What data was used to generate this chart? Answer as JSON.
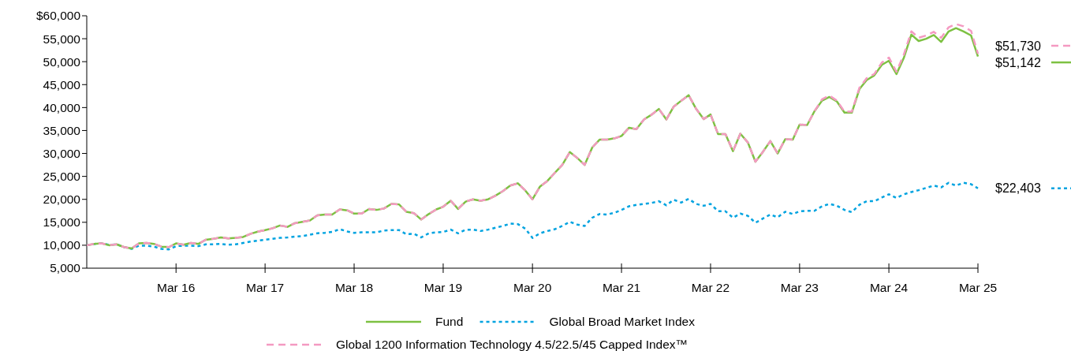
{
  "chart_data": {
    "type": "line",
    "x": [
      "2015-03",
      "2015-04",
      "2015-05",
      "2015-06",
      "2015-07",
      "2015-08",
      "2015-09",
      "2015-10",
      "2015-11",
      "2015-12",
      "2016-01",
      "2016-02",
      "2016-03",
      "2016-04",
      "2016-05",
      "2016-06",
      "2016-07",
      "2016-08",
      "2016-09",
      "2016-10",
      "2016-11",
      "2016-12",
      "2017-01",
      "2017-02",
      "2017-03",
      "2017-04",
      "2017-05",
      "2017-06",
      "2017-07",
      "2017-08",
      "2017-09",
      "2017-10",
      "2017-11",
      "2017-12",
      "2018-01",
      "2018-02",
      "2018-03",
      "2018-04",
      "2018-05",
      "2018-06",
      "2018-07",
      "2018-08",
      "2018-09",
      "2018-10",
      "2018-11",
      "2018-12",
      "2019-01",
      "2019-02",
      "2019-03",
      "2019-04",
      "2019-05",
      "2019-06",
      "2019-07",
      "2019-08",
      "2019-09",
      "2019-10",
      "2019-11",
      "2019-12",
      "2020-01",
      "2020-02",
      "2020-03",
      "2020-04",
      "2020-05",
      "2020-06",
      "2020-07",
      "2020-08",
      "2020-09",
      "2020-10",
      "2020-11",
      "2020-12",
      "2021-01",
      "2021-02",
      "2021-03",
      "2021-04",
      "2021-05",
      "2021-06",
      "2021-07",
      "2021-08",
      "2021-09",
      "2021-10",
      "2021-11",
      "2021-12",
      "2022-01",
      "2022-02",
      "2022-03",
      "2022-04",
      "2022-05",
      "2022-06",
      "2022-07",
      "2022-08",
      "2022-09",
      "2022-10",
      "2022-11",
      "2022-12",
      "2023-01",
      "2023-02",
      "2023-03",
      "2023-04",
      "2023-05",
      "2023-06",
      "2023-07",
      "2023-08",
      "2023-09",
      "2023-10",
      "2023-11",
      "2023-12",
      "2024-01",
      "2024-02",
      "2024-03",
      "2024-04",
      "2024-05",
      "2024-06",
      "2024-07",
      "2024-08",
      "2024-09",
      "2024-10",
      "2024-11",
      "2024-12",
      "2025-01",
      "2025-02",
      "2025-03"
    ],
    "series": [
      {
        "name": "Global 1200 Information Technology 4.5/22.5/45 Capped Index™",
        "color": "#f49ac1",
        "line_style": "dashed",
        "values": [
          10000,
          10300,
          10400,
          10000,
          10200,
          9600,
          9300,
          10400,
          10500,
          10300,
          9700,
          9600,
          10400,
          10100,
          10500,
          10300,
          11200,
          11400,
          11700,
          11500,
          11600,
          11800,
          12500,
          13000,
          13300,
          13700,
          14300,
          14000,
          14800,
          15100,
          15400,
          16500,
          16700,
          16700,
          17800,
          17600,
          16900,
          16900,
          17900,
          17700,
          18000,
          19000,
          18900,
          17300,
          17000,
          15600,
          16800,
          17800,
          18400,
          19700,
          17900,
          19500,
          20000,
          19700,
          20000,
          20800,
          21800,
          23000,
          23500,
          21900,
          20000,
          22800,
          24000,
          25800,
          27500,
          30300,
          29000,
          27500,
          31300,
          33000,
          33000,
          33300,
          33800,
          35600,
          35300,
          37400,
          38400,
          39700,
          37400,
          40200,
          41500,
          42700,
          39700,
          37500,
          38500,
          34200,
          34200,
          30500,
          34300,
          32400,
          28200,
          30300,
          32700,
          30000,
          33100,
          33000,
          36300,
          36200,
          39200,
          41800,
          42600,
          41500,
          39100,
          39100,
          44300,
          46400,
          47300,
          49800,
          50900,
          47800,
          51500,
          56600,
          55200,
          55700,
          56500,
          55200,
          57500,
          58200,
          57700,
          56700,
          51730
        ],
        "value_labels": [
          null,
          null,
          null,
          null,
          null,
          null,
          null,
          null,
          null,
          null,
          null,
          null,
          null,
          null,
          null,
          null,
          null,
          null,
          null,
          null,
          null,
          null,
          null,
          null,
          null,
          null,
          null,
          null,
          null,
          null,
          null,
          null,
          null,
          null,
          null,
          null,
          null,
          null,
          null,
          null,
          null,
          null,
          null,
          null,
          null,
          null,
          null,
          null,
          null,
          null,
          null,
          null,
          null,
          null,
          null,
          null,
          null,
          null,
          null,
          null,
          null,
          null,
          null,
          null,
          null,
          null,
          null,
          null,
          null,
          null,
          null,
          null,
          null,
          null,
          null,
          null,
          null,
          null,
          null,
          null,
          null,
          null,
          null,
          null,
          null,
          null,
          null,
          null,
          null,
          null,
          null,
          null,
          null,
          null,
          null,
          null,
          null,
          null,
          null,
          null,
          null,
          null,
          null,
          null,
          null,
          null,
          null,
          null,
          null,
          null,
          null,
          null,
          null,
          null,
          null,
          null,
          null,
          null,
          null,
          null,
          "$51,730"
        ]
      },
      {
        "name": "Fund",
        "color": "#7dc142",
        "line_style": "solid",
        "values": [
          10000,
          10300,
          10400,
          10000,
          10200,
          9600,
          9300,
          10400,
          10500,
          10300,
          9700,
          9600,
          10400,
          10100,
          10500,
          10300,
          11200,
          11400,
          11700,
          11500,
          11600,
          11800,
          12500,
          13000,
          13300,
          13700,
          14300,
          14000,
          14800,
          15100,
          15400,
          16500,
          16700,
          16700,
          17800,
          17600,
          16900,
          16900,
          17900,
          17700,
          18000,
          19000,
          18900,
          17300,
          17000,
          15600,
          16800,
          17800,
          18400,
          19700,
          17900,
          19500,
          20000,
          19700,
          20000,
          20800,
          21800,
          23000,
          23500,
          21900,
          20000,
          22800,
          24000,
          25800,
          27500,
          30300,
          29000,
          27500,
          31300,
          33000,
          33000,
          33300,
          33800,
          35600,
          35300,
          37400,
          38400,
          39700,
          37400,
          40200,
          41500,
          42700,
          39700,
          37500,
          38500,
          34200,
          34200,
          30500,
          34300,
          32400,
          28200,
          30300,
          32700,
          30000,
          33100,
          33000,
          36300,
          36200,
          39200,
          41500,
          42300,
          41300,
          38900,
          38900,
          44000,
          46000,
          47000,
          49300,
          50200,
          47300,
          50800,
          55900,
          54500,
          55000,
          55800,
          54300,
          56600,
          57300,
          56600,
          55700,
          51142
        ],
        "value_labels": [
          null,
          null,
          null,
          null,
          null,
          null,
          null,
          null,
          null,
          null,
          null,
          null,
          null,
          null,
          null,
          null,
          null,
          null,
          null,
          null,
          null,
          null,
          null,
          null,
          null,
          null,
          null,
          null,
          null,
          null,
          null,
          null,
          null,
          null,
          null,
          null,
          null,
          null,
          null,
          null,
          null,
          null,
          null,
          null,
          null,
          null,
          null,
          null,
          null,
          null,
          null,
          null,
          null,
          null,
          null,
          null,
          null,
          null,
          null,
          null,
          null,
          null,
          null,
          null,
          null,
          null,
          null,
          null,
          null,
          null,
          null,
          null,
          null,
          null,
          null,
          null,
          null,
          null,
          null,
          null,
          null,
          null,
          null,
          null,
          null,
          null,
          null,
          null,
          null,
          null,
          null,
          null,
          null,
          null,
          null,
          null,
          null,
          null,
          null,
          null,
          null,
          null,
          null,
          null,
          null,
          null,
          null,
          null,
          null,
          null,
          null,
          null,
          null,
          null,
          null,
          null,
          null,
          null,
          null,
          null,
          "$51,142"
        ]
      },
      {
        "name": "Global Broad Market Index",
        "color": "#00a3e0",
        "line_style": "dotted",
        "values": [
          10000,
          10300,
          10400,
          10100,
          10200,
          9600,
          9200,
          9900,
          9900,
          9700,
          9200,
          9100,
          9800,
          9900,
          9900,
          9800,
          10200,
          10200,
          10300,
          10100,
          10200,
          10500,
          10800,
          11000,
          11200,
          11400,
          11600,
          11700,
          11900,
          12000,
          12300,
          12600,
          12700,
          12900,
          13500,
          13000,
          12700,
          12800,
          12800,
          12800,
          13200,
          13300,
          13300,
          12400,
          12500,
          11700,
          12600,
          12800,
          12900,
          13400,
          12600,
          13400,
          13400,
          13100,
          13400,
          13800,
          14200,
          14700,
          14600,
          13600,
          11600,
          12600,
          13100,
          13500,
          14200,
          15100,
          14500,
          14200,
          16000,
          16800,
          16700,
          17100,
          17700,
          18500,
          18800,
          19000,
          19200,
          19600,
          18700,
          19900,
          19300,
          20100,
          19000,
          18600,
          19000,
          17400,
          17400,
          16000,
          16900,
          16400,
          14900,
          15800,
          16700,
          16100,
          17300,
          16800,
          17400,
          17500,
          17500,
          18500,
          19000,
          18600,
          17700,
          17200,
          18800,
          19600,
          19600,
          20400,
          21100,
          20300,
          21100,
          21600,
          22000,
          22500,
          23000,
          22600,
          23600,
          23000,
          23600,
          23300,
          22403
        ],
        "value_labels": [
          null,
          null,
          null,
          null,
          null,
          null,
          null,
          null,
          null,
          null,
          null,
          null,
          null,
          null,
          null,
          null,
          null,
          null,
          null,
          null,
          null,
          null,
          null,
          null,
          null,
          null,
          null,
          null,
          null,
          null,
          null,
          null,
          null,
          null,
          null,
          null,
          null,
          null,
          null,
          null,
          null,
          null,
          null,
          null,
          null,
          null,
          null,
          null,
          null,
          null,
          null,
          null,
          null,
          null,
          null,
          null,
          null,
          null,
          null,
          null,
          null,
          null,
          null,
          null,
          null,
          null,
          null,
          null,
          null,
          null,
          null,
          null,
          null,
          null,
          null,
          null,
          null,
          null,
          null,
          null,
          null,
          null,
          null,
          null,
          null,
          null,
          null,
          null,
          null,
          null,
          null,
          null,
          null,
          null,
          null,
          null,
          null,
          null,
          null,
          null,
          null,
          null,
          null,
          null,
          null,
          null,
          null,
          null,
          null,
          null,
          null,
          null,
          null,
          null,
          null,
          null,
          null,
          null,
          null,
          null,
          "$22,403"
        ]
      }
    ],
    "xlim": [
      "2015-03",
      "2025-03"
    ],
    "xticks": [
      {
        "value": "2016-03",
        "label": "Mar 16"
      },
      {
        "value": "2017-03",
        "label": "Mar 17"
      },
      {
        "value": "2018-03",
        "label": "Mar 18"
      },
      {
        "value": "2019-03",
        "label": "Mar 19"
      },
      {
        "value": "2020-03",
        "label": "Mar 20"
      },
      {
        "value": "2021-03",
        "label": "Mar 21"
      },
      {
        "value": "2022-03",
        "label": "Mar 22"
      },
      {
        "value": "2023-03",
        "label": "Mar 23"
      },
      {
        "value": "2024-03",
        "label": "Mar 24"
      },
      {
        "value": "2025-03",
        "label": "Mar 25"
      }
    ],
    "ylim": [
      5000,
      60000
    ],
    "yticks": [
      {
        "value": 5000,
        "label": "5,000"
      },
      {
        "value": 10000,
        "label": "10,000"
      },
      {
        "value": 15000,
        "label": "15,000"
      },
      {
        "value": 20000,
        "label": "20,000"
      },
      {
        "value": 25000,
        "label": "25,000"
      },
      {
        "value": 30000,
        "label": "30,000"
      },
      {
        "value": 35000,
        "label": "35,000"
      },
      {
        "value": 40000,
        "label": "40,000"
      },
      {
        "value": 45000,
        "label": "45,000"
      },
      {
        "value": 50000,
        "label": "50,000"
      },
      {
        "value": 55000,
        "label": "55,000"
      },
      {
        "value": 60000,
        "label": "$60,000"
      }
    ],
    "grid": false,
    "legend": "bottom",
    "marker": "none"
  }
}
